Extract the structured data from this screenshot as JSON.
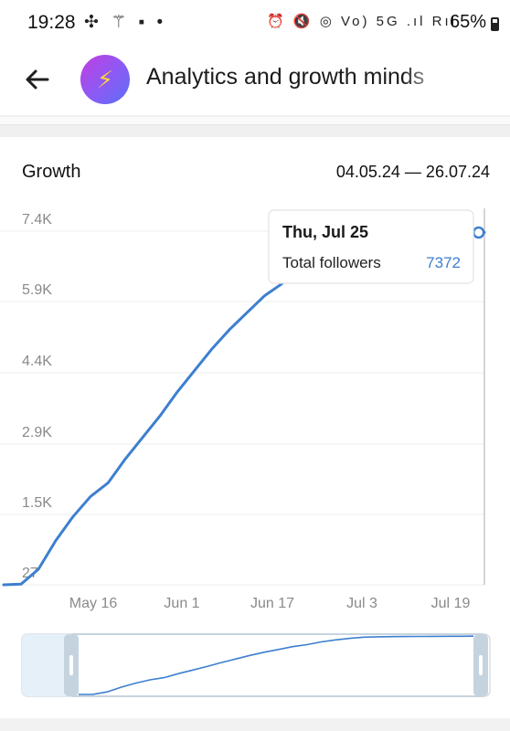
{
  "status_bar": {
    "time": "19:28",
    "left_icons": [
      "fan-icon",
      "magic-wand-icon",
      "alert-icon",
      "dot-icon"
    ],
    "left_glyphs": "✣ ⚚ ▪ •",
    "right_icons": [
      "alarm-icon",
      "mute-icon",
      "hotspot-icon",
      "volte-icon",
      "5g-icon",
      "signal-icon",
      "signal-r-icon"
    ],
    "right_glyphs": "⏰ 🔇 ◎ Vo) 5G .ıl Rıl",
    "battery": "65%"
  },
  "header": {
    "title": "Analytics and growth minds",
    "avatar_icon": "lightning-icon",
    "avatar_glyph": "⚡"
  },
  "card": {
    "title": "Growth",
    "date_range": "04.05.24 — 26.07.24"
  },
  "chart_data": {
    "type": "line",
    "title": "Growth",
    "x_tick_labels": [
      "May 16",
      "Jun 1",
      "Jun 17",
      "Jul 3",
      "Jul 19"
    ],
    "y_tick_labels": [
      "27",
      "1.5K",
      "2.9K",
      "4.4K",
      "5.9K",
      "7.4K"
    ],
    "ylim": [
      27,
      7400
    ],
    "grid": true,
    "line_color": "#3d7fcf",
    "series": [
      {
        "name": "Total followers",
        "dates": [
          "2024-05-04",
          "2024-05-07",
          "2024-05-10",
          "2024-05-13",
          "2024-05-16",
          "2024-05-19",
          "2024-05-22",
          "2024-05-25",
          "2024-05-28",
          "2024-05-31",
          "2024-06-03",
          "2024-06-06",
          "2024-06-09",
          "2024-06-12",
          "2024-06-15",
          "2024-06-18",
          "2024-06-21",
          "2024-06-24",
          "2024-06-27",
          "2024-06-30",
          "2024-07-03",
          "2024-07-06",
          "2024-07-09",
          "2024-07-12",
          "2024-07-15",
          "2024-07-18",
          "2024-07-21",
          "2024-07-24",
          "2024-07-25",
          "2024-07-26"
        ],
        "values": [
          27,
          40,
          350,
          950,
          1450,
          1870,
          2150,
          2650,
          3100,
          3550,
          4050,
          4500,
          4950,
          5350,
          5700,
          6050,
          6300,
          6650,
          6900,
          7100,
          7250,
          7300,
          7320,
          7335,
          7345,
          7355,
          7362,
          7368,
          7372,
          7375
        ]
      }
    ],
    "tooltip": {
      "date_label": "Thu, Jul 25",
      "series_label": "Total followers",
      "value": "7372"
    }
  }
}
